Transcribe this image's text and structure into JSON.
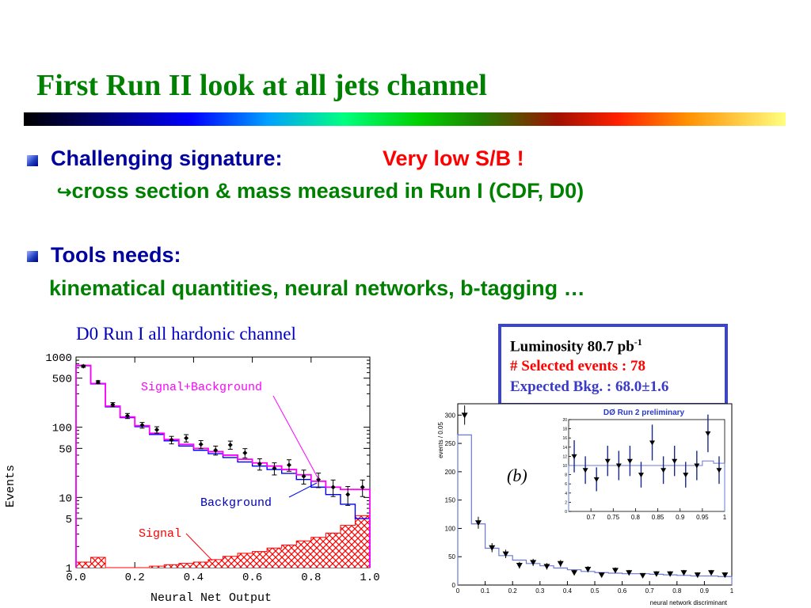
{
  "slide": {
    "title": "First Run II look at all jets channel",
    "bullet1_label": "Challenging signature:",
    "bullet1_highlight": "Very low S/B !",
    "bullet1_sub_arrow": "↪",
    "bullet1_sub": "cross section & mass measured in Run I (CDF, D0)",
    "bullet2_label": "Tools needs:",
    "bullet2_sub": "kinematical quantities, neural networks, b-tagging …",
    "caption_left": "D0 Run I all hardonic channel",
    "info_luminosity": "Luminosity 80.7 pb",
    "info_luminosity_sup": "-1",
    "info_selected": "# Selected events : 78",
    "info_expected": "Expected Bkg. : 68.0±1.6"
  },
  "chart_data": [
    {
      "type": "histogram",
      "xlabel": "Neural Net Output",
      "ylabel": "Events",
      "xlim": [
        0.0,
        1.0
      ],
      "ylim": [
        1,
        1000
      ],
      "yscale": "log",
      "x_ticks": [
        "0.0",
        "0.2",
        "0.4",
        "0.6",
        "0.8",
        "1.0"
      ],
      "y_ticks": [
        "1",
        "5",
        "10",
        "50",
        "100",
        "500",
        "1000"
      ],
      "bins": [
        0.0,
        0.05,
        0.1,
        0.15,
        0.2,
        0.25,
        0.3,
        0.35,
        0.4,
        0.45,
        0.5,
        0.55,
        0.6,
        0.65,
        0.7,
        0.75,
        0.8,
        0.85,
        0.9,
        0.95,
        1.0
      ],
      "series": [
        {
          "name": "Signal+Background",
          "color": "#ff00ff",
          "values": [
            760,
            420,
            200,
            140,
            105,
            82,
            67,
            57,
            50,
            45,
            40,
            35,
            31,
            28,
            25,
            21,
            17,
            14,
            13,
            13
          ]
        },
        {
          "name": "Background",
          "color": "#0000ff",
          "values": [
            750,
            415,
            195,
            137,
            102,
            79,
            64,
            54,
            47,
            42,
            37,
            32,
            28,
            25,
            22,
            18,
            14,
            11,
            8,
            5
          ]
        },
        {
          "name": "Signal",
          "color": "#ff0000",
          "values": [
            1.2,
            1.4,
            1.0,
            1.0,
            1.0,
            1.05,
            1.1,
            1.15,
            1.2,
            1.3,
            1.45,
            1.6,
            1.7,
            1.9,
            2.1,
            2.4,
            2.7,
            3.1,
            4.0,
            5.5
          ]
        },
        {
          "name": "Data",
          "color": "#000000",
          "x": [
            0.025,
            0.075,
            0.125,
            0.175,
            0.225,
            0.275,
            0.325,
            0.375,
            0.425,
            0.475,
            0.525,
            0.575,
            0.625,
            0.675,
            0.725,
            0.775,
            0.825,
            0.875,
            0.925,
            0.975
          ],
          "values": [
            740,
            440,
            210,
            145,
            107,
            92,
            66,
            70,
            57,
            47,
            56,
            43,
            30,
            26,
            29,
            20,
            18,
            14,
            11,
            14
          ],
          "errors": [
            27,
            21,
            14,
            12,
            10,
            9.6,
            8.1,
            8.4,
            7.5,
            6.9,
            7.5,
            6.6,
            5.5,
            5.1,
            5.4,
            4.5,
            4.2,
            3.7,
            3.3,
            3.7
          ]
        }
      ]
    },
    {
      "type": "histogram",
      "xlabel": "neural network discriminant",
      "ylabel": "events / 0.05",
      "panel_label": "(b)",
      "xlim": [
        0,
        1
      ],
      "ylim": [
        0,
        320
      ],
      "x_ticks": [
        "0",
        "0.1",
        "0.2",
        "0.3",
        "0.4",
        "0.5",
        "0.6",
        "0.7",
        "0.8",
        "0.9",
        "1"
      ],
      "y_ticks": [
        "0",
        "50",
        "100",
        "150",
        "200",
        "250",
        "300"
      ],
      "bins": [
        0.0,
        0.05,
        0.1,
        0.15,
        0.2,
        0.25,
        0.3,
        0.35,
        0.4,
        0.45,
        0.5,
        0.55,
        0.6,
        0.65,
        0.7,
        0.75,
        0.8,
        0.85,
        0.9,
        0.95,
        1.0
      ],
      "series": [
        {
          "name": "Expected",
          "color": "#6a78d8",
          "values": [
            265,
            108,
            65,
            52,
            44,
            38,
            34,
            30,
            27,
            24,
            22,
            21,
            20,
            20,
            19,
            18,
            17,
            16,
            16,
            15
          ]
        },
        {
          "name": "Data",
          "color": "#000000",
          "x": [
            0.025,
            0.075,
            0.125,
            0.175,
            0.225,
            0.275,
            0.325,
            0.375,
            0.425,
            0.475,
            0.525,
            0.575,
            0.625,
            0.675,
            0.725,
            0.775,
            0.825,
            0.875,
            0.925,
            0.975
          ],
          "values": [
            300,
            110,
            66,
            55,
            35,
            40,
            33,
            38,
            22,
            28,
            18,
            26,
            22,
            17,
            20,
            20,
            22,
            18,
            22,
            18
          ],
          "errors": [
            17,
            10.5,
            8.1,
            7.4,
            5.9,
            6.3,
            5.7,
            6.2,
            4.7,
            5.3,
            4.2,
            5.1,
            4.7,
            4.1,
            4.5,
            4.5,
            4.7,
            4.2,
            4.7,
            4.2
          ]
        }
      ]
    },
    {
      "type": "histogram",
      "title": "DØ  Run 2 preliminary",
      "xlim": [
        0.65,
        1.0
      ],
      "ylim": [
        0,
        20
      ],
      "x_ticks": [
        "0.7",
        "0.75",
        "0.8",
        "0.85",
        "0.9",
        "0.95",
        "1"
      ],
      "y_ticks": [
        "0",
        "2",
        "4",
        "6",
        "8",
        "10",
        "12",
        "14",
        "16",
        "18",
        "20"
      ],
      "bins": [
        0.65,
        0.675,
        0.7,
        0.725,
        0.75,
        0.775,
        0.8,
        0.825,
        0.85,
        0.875,
        0.9,
        0.925,
        0.95,
        0.975,
        1.0
      ],
      "series": [
        {
          "name": "Expected",
          "color": "#6a78d8",
          "values": [
            10,
            10,
            10,
            10,
            10,
            10,
            10,
            10,
            10,
            10,
            10,
            10,
            11,
            10.5
          ]
        },
        {
          "name": "Data",
          "color": "#000000",
          "x": [
            0.6625,
            0.6875,
            0.7125,
            0.7375,
            0.7625,
            0.7875,
            0.8125,
            0.8375,
            0.8625,
            0.8875,
            0.9125,
            0.9375,
            0.9625,
            0.9875
          ],
          "values": [
            12,
            9,
            7,
            11,
            10,
            11,
            8,
            15,
            9,
            11,
            8,
            10,
            17,
            9
          ],
          "errors": [
            3.5,
            3.0,
            2.6,
            3.3,
            3.2,
            3.3,
            2.8,
            3.9,
            3.0,
            3.3,
            2.8,
            3.2,
            4.1,
            3.0
          ]
        }
      ]
    }
  ]
}
